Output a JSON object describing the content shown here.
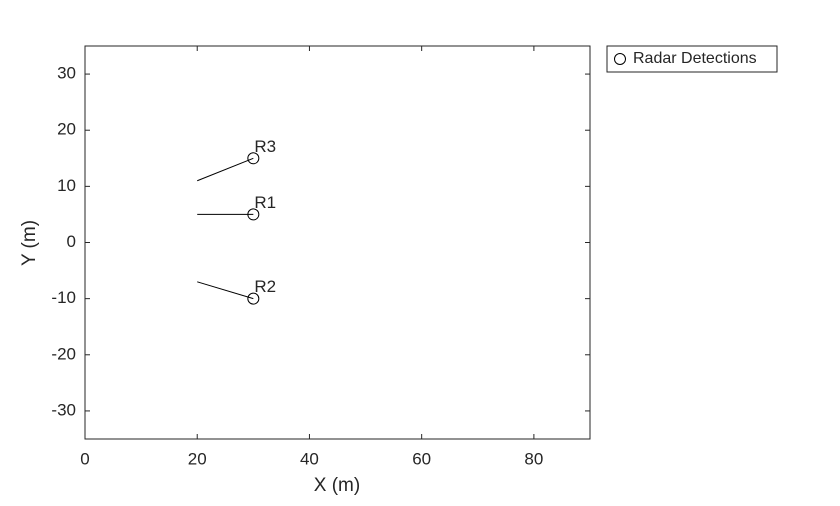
{
  "chart_data": {
    "type": "scatter",
    "xlabel": "X (m)",
    "ylabel": "Y (m)",
    "xlim": [
      0,
      90
    ],
    "ylim": [
      -35,
      35
    ],
    "xticks": [
      0,
      20,
      40,
      60,
      80
    ],
    "yticks": [
      -30,
      -20,
      -10,
      0,
      10,
      20,
      30
    ],
    "grid": false,
    "legend": "northeastoutside",
    "series": [
      {
        "name": "Radar Detections",
        "color": "#000000",
        "x": [
          30,
          30,
          30
        ],
        "y": [
          5,
          -10,
          15
        ],
        "labels": [
          "R1",
          "R2",
          "R3"
        ]
      }
    ],
    "segments": [
      {
        "x": [
          20,
          30
        ],
        "y": [
          5,
          5
        ]
      },
      {
        "x": [
          20,
          30
        ],
        "y": [
          -7,
          -10
        ]
      },
      {
        "x": [
          20,
          30
        ],
        "y": [
          11,
          15
        ]
      }
    ]
  }
}
